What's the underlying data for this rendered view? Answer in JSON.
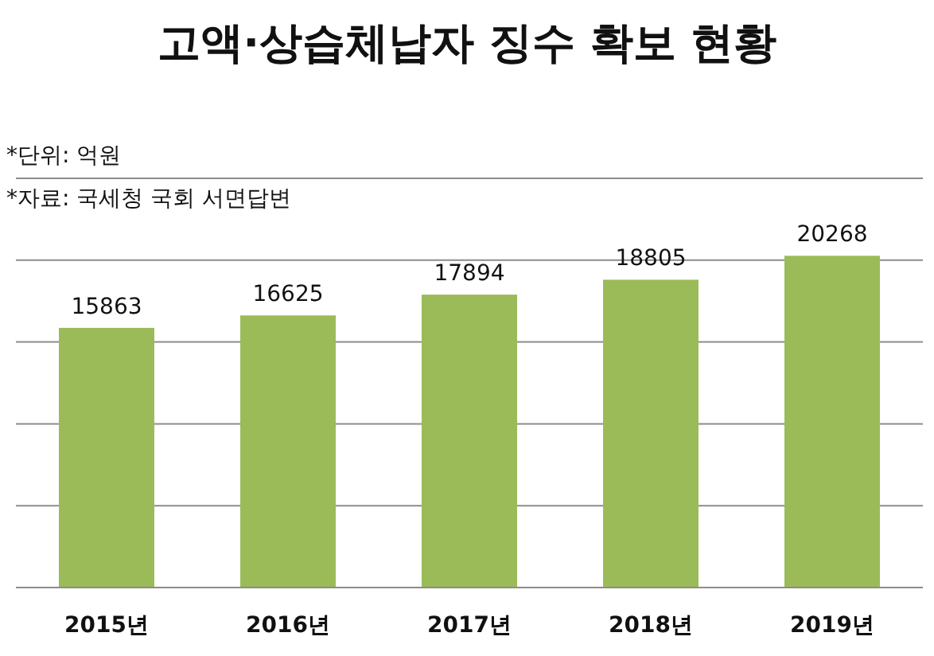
{
  "chart_data": {
    "type": "bar",
    "title": "고액·상습체납자 징수 확보 현황",
    "annotations": [
      "*단위: 억원",
      "*자료: 국세청 국회 서면답변"
    ],
    "categories": [
      "2015년",
      "2016년",
      "2017년",
      "2018년",
      "2019년"
    ],
    "values": [
      15863,
      16625,
      17894,
      18805,
      20268
    ],
    "color": "#9bbb59",
    "ylim": [
      0,
      25000
    ],
    "yticks": [
      {
        "value": 0,
        "label": null
      },
      {
        "value": 5000,
        "label": null
      },
      {
        "value": 10000,
        "label": null
      },
      {
        "value": 15000,
        "label": null
      },
      {
        "value": 20000,
        "label": null
      },
      {
        "value": 25000,
        "label": null
      }
    ],
    "grid": "y",
    "tick_labels": "x",
    "data_labels": true
  }
}
